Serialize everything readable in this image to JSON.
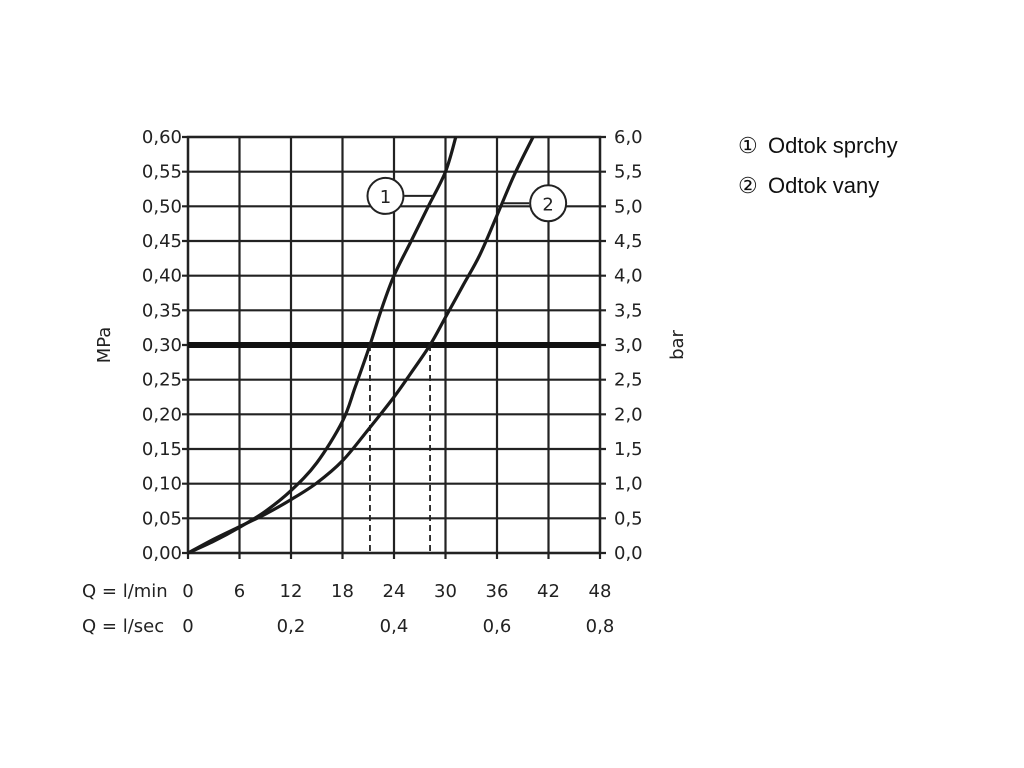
{
  "chart_data": {
    "type": "line",
    "x_unit_label": "Q = l/min",
    "x2_unit_label": "Q = l/sec",
    "ylabel": "MPa",
    "ylabel_right": "bar",
    "xlim": [
      0,
      48
    ],
    "ylim": [
      0,
      0.6
    ],
    "grid": true,
    "x_ticks": [
      "0",
      "6",
      "12",
      "18",
      "24",
      "30",
      "36",
      "42",
      "48"
    ],
    "x2_ticks": [
      {
        "x": 0,
        "label": "0"
      },
      {
        "x": 12,
        "label": "0,2"
      },
      {
        "x": 24,
        "label": "0,4"
      },
      {
        "x": 36,
        "label": "0,6"
      },
      {
        "x": 48,
        "label": "0,8"
      }
    ],
    "y_ticks": [
      "0,00",
      "0,05",
      "0,10",
      "0,15",
      "0,20",
      "0,25",
      "0,30",
      "0,35",
      "0,40",
      "0,45",
      "0,50",
      "0,55",
      "0,60"
    ],
    "y_ticks_right": [
      "0,0",
      "0,5",
      "1,0",
      "1,5",
      "2,0",
      "2,5",
      "3,0",
      "3,5",
      "4,0",
      "4,5",
      "5,0",
      "5,5",
      "6,0"
    ],
    "reference_line": {
      "y": 0.3
    },
    "dropdown_lines": [
      {
        "x": 21.2,
        "y": 0.3
      },
      {
        "x": 28.2,
        "y": 0.3
      }
    ],
    "series": [
      {
        "name": "1",
        "x": [
          0,
          3,
          6,
          9,
          12,
          15,
          18,
          19.5,
          21.2,
          22.5,
          24,
          26,
          28,
          30,
          31.2
        ],
        "y": [
          0,
          0.017,
          0.037,
          0.06,
          0.09,
          0.13,
          0.19,
          0.24,
          0.3,
          0.35,
          0.4,
          0.45,
          0.5,
          0.55,
          0.6
        ]
      },
      {
        "name": "2",
        "x": [
          0,
          3,
          6,
          9,
          12,
          15,
          18,
          21,
          24,
          26,
          28.2,
          30,
          32,
          34,
          36,
          38,
          40.2
        ],
        "y": [
          0,
          0.02,
          0.038,
          0.056,
          0.077,
          0.101,
          0.133,
          0.178,
          0.225,
          0.26,
          0.3,
          0.34,
          0.385,
          0.43,
          0.487,
          0.545,
          0.6
        ]
      }
    ],
    "curve_labels": [
      {
        "text": "1",
        "series": 0,
        "x": 28.6
      },
      {
        "text": "2",
        "series": 1,
        "x": 36.6
      }
    ]
  },
  "legend": [
    {
      "marker": "①",
      "label": "Odtok sprchy"
    },
    {
      "marker": "②",
      "label": "Odtok vany"
    }
  ]
}
